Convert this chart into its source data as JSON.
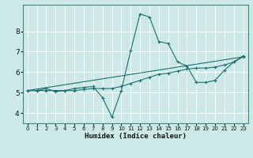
{
  "title": "",
  "xlabel": "Humidex (Indice chaleur)",
  "ylabel": "",
  "bg_color": "#cce9e7",
  "grid_color": "#ffffff",
  "line_color": "#1a7070",
  "xlim": [
    -0.5,
    23.5
  ],
  "ylim": [
    3.5,
    9.3
  ],
  "yticks": [
    4,
    5,
    6,
    7,
    8
  ],
  "xticks": [
    0,
    1,
    2,
    3,
    4,
    5,
    6,
    7,
    8,
    9,
    10,
    11,
    12,
    13,
    14,
    15,
    16,
    17,
    18,
    19,
    20,
    21,
    22,
    23
  ],
  "series1_x": [
    0,
    1,
    2,
    3,
    4,
    5,
    6,
    7,
    8,
    9,
    10,
    11,
    12,
    13,
    14,
    15,
    16,
    17,
    18,
    19,
    20,
    21,
    22,
    23
  ],
  "series1_y": [
    5.1,
    5.1,
    5.2,
    5.05,
    5.1,
    5.2,
    5.25,
    5.3,
    4.75,
    3.8,
    5.1,
    7.05,
    8.85,
    8.7,
    7.5,
    7.4,
    6.5,
    6.3,
    5.5,
    5.5,
    5.6,
    6.1,
    6.5,
    6.8
  ],
  "series2_x": [
    0,
    1,
    2,
    3,
    4,
    5,
    6,
    7,
    8,
    9,
    10,
    11,
    12,
    13,
    14,
    15,
    16,
    17,
    18,
    19,
    20,
    21,
    22,
    23
  ],
  "series2_y": [
    5.1,
    5.1,
    5.1,
    5.1,
    5.1,
    5.1,
    5.15,
    5.2,
    5.2,
    5.2,
    5.3,
    5.45,
    5.6,
    5.75,
    5.9,
    5.95,
    6.05,
    6.15,
    6.2,
    6.2,
    6.25,
    6.35,
    6.5,
    6.75
  ],
  "series3_x": [
    0,
    23
  ],
  "series3_y": [
    5.1,
    6.75
  ]
}
